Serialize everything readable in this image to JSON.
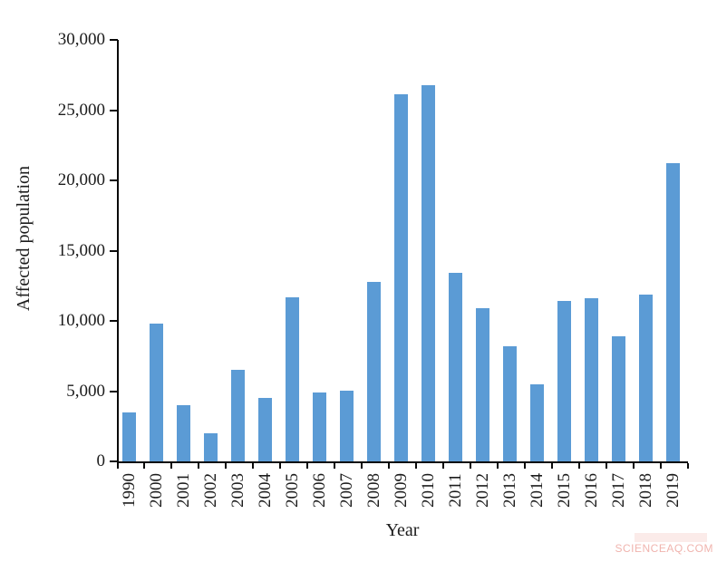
{
  "watermark": {
    "text": "SCIENCEAQ.COM",
    "color": "#f0b4ae"
  },
  "chart_data": {
    "type": "bar",
    "title": "",
    "xlabel": "Year",
    "ylabel": "Affected population",
    "categories": [
      "1990",
      "2000",
      "2001",
      "2002",
      "2003",
      "2004",
      "2005",
      "2006",
      "2007",
      "2008",
      "2009",
      "2010",
      "2011",
      "2012",
      "2013",
      "2014",
      "2015",
      "2016",
      "2017",
      "2018",
      "2019"
    ],
    "values": [
      3500,
      9800,
      4000,
      2000,
      6500,
      4500,
      11700,
      4900,
      5000,
      12800,
      26100,
      26800,
      13400,
      10900,
      8200,
      5500,
      11400,
      11600,
      8900,
      11900,
      21200
    ],
    "ylim": [
      0,
      30000
    ],
    "ytick_interval": 5000,
    "ytick_labels": [
      "0",
      "5,000",
      "10,000",
      "15,000",
      "20,000",
      "25,000",
      "30,000"
    ],
    "bar_color": "#5B9BD5",
    "grid": false,
    "legend": "none"
  }
}
